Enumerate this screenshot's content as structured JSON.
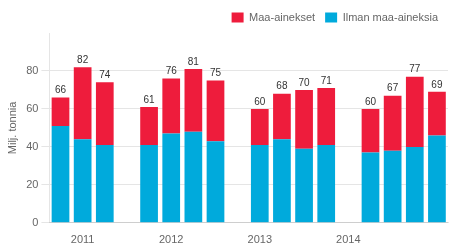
{
  "chart_data": {
    "type": "bar",
    "stacked": true,
    "categories": [
      null,
      "2011",
      null,
      null,
      null,
      "2012",
      null,
      null,
      null,
      "2013",
      null,
      null,
      null,
      "2014",
      null,
      null,
      null,
      null
    ],
    "series": [
      {
        "name": "Ilman maa-aineksia",
        "color": "#00AADC",
        "values": [
          51,
          44,
          41,
          null,
          41,
          47,
          48,
          43,
          null,
          41,
          44,
          39,
          41,
          null,
          37,
          38,
          40,
          46
        ]
      },
      {
        "name": "Maa-ainekset",
        "color": "#EE1C3C",
        "values": [
          15,
          38,
          33,
          null,
          20,
          29,
          33,
          32,
          null,
          19,
          24,
          31,
          30,
          null,
          23,
          29,
          37,
          23
        ]
      }
    ],
    "totals": [
      66,
      82,
      74,
      null,
      61,
      76,
      81,
      75,
      null,
      60,
      68,
      70,
      71,
      null,
      60,
      67,
      77,
      69
    ],
    "ylabel": "Milj. tonnia",
    "ylim": [
      0,
      100
    ],
    "yticks": [
      0,
      20,
      40,
      60,
      80
    ],
    "grid": true,
    "legend": "upper right"
  }
}
